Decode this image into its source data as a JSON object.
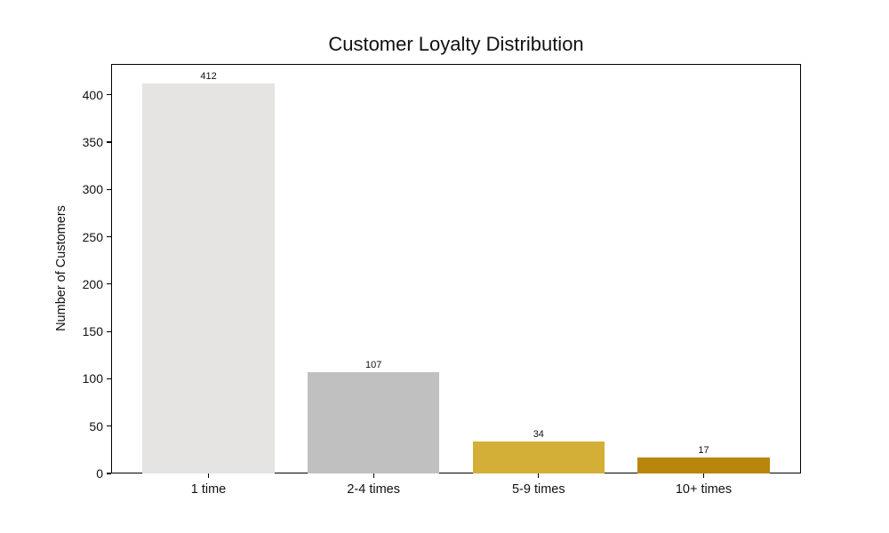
{
  "figure": {
    "background": "#ffffff"
  },
  "chart_data": {
    "type": "bar",
    "title": "Customer Loyalty Distribution",
    "xlabel": "",
    "ylabel": "Number of Customers",
    "categories": [
      "1 time",
      "2-4 times",
      "5-9 times",
      "10+ times"
    ],
    "values": [
      412,
      107,
      34,
      17
    ],
    "value_labels": [
      "412",
      "107",
      "34",
      "17"
    ],
    "bar_colors": [
      "#e5e4e2",
      "#c0c0c0",
      "#d4af37",
      "#b8860b"
    ],
    "bar_width_ratio": 0.8,
    "xlim": [
      -0.59,
      3.59
    ],
    "ylim": [
      0,
      432.6
    ],
    "yticks": [
      0,
      50,
      100,
      150,
      200,
      250,
      300,
      350,
      400
    ],
    "grid": false,
    "legend": null,
    "axis_color": "#000000",
    "text_color": "#111111"
  }
}
